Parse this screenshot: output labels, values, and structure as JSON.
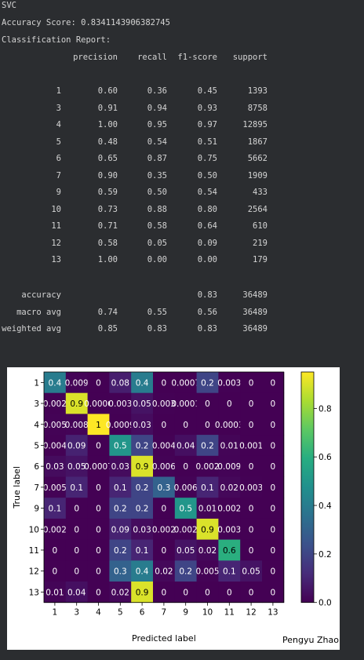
{
  "console": {
    "title": "SVC",
    "accuracy_line": "Accuracy Score: 0.8341143906382745",
    "report_title": "Classification Report:",
    "headers": [
      "precision",
      "recall",
      "f1-score",
      "support"
    ],
    "rows": [
      {
        "label": "1",
        "precision": "0.60",
        "recall": "0.36",
        "f1": "0.45",
        "support": "1393"
      },
      {
        "label": "3",
        "precision": "0.91",
        "recall": "0.94",
        "f1": "0.93",
        "support": "8758"
      },
      {
        "label": "4",
        "precision": "1.00",
        "recall": "0.95",
        "f1": "0.97",
        "support": "12895"
      },
      {
        "label": "5",
        "precision": "0.48",
        "recall": "0.54",
        "f1": "0.51",
        "support": "1867"
      },
      {
        "label": "6",
        "precision": "0.65",
        "recall": "0.87",
        "f1": "0.75",
        "support": "5662"
      },
      {
        "label": "7",
        "precision": "0.90",
        "recall": "0.35",
        "f1": "0.50",
        "support": "1909"
      },
      {
        "label": "9",
        "precision": "0.59",
        "recall": "0.50",
        "f1": "0.54",
        "support": "433"
      },
      {
        "label": "10",
        "precision": "0.73",
        "recall": "0.88",
        "f1": "0.80",
        "support": "2564"
      },
      {
        "label": "11",
        "precision": "0.71",
        "recall": "0.58",
        "f1": "0.64",
        "support": "610"
      },
      {
        "label": "12",
        "precision": "0.58",
        "recall": "0.05",
        "f1": "0.09",
        "support": "219"
      },
      {
        "label": "13",
        "precision": "1.00",
        "recall": "0.00",
        "f1": "0.00",
        "support": "179"
      }
    ],
    "summary": [
      {
        "label": "accuracy",
        "precision": "",
        "recall": "",
        "f1": "0.83",
        "support": "36489"
      },
      {
        "label": "macro avg",
        "precision": "0.74",
        "recall": "0.55",
        "f1": "0.56",
        "support": "36489"
      },
      {
        "label": "weighted avg",
        "precision": "0.85",
        "recall": "0.83",
        "f1": "0.83",
        "support": "36489"
      }
    ]
  },
  "chart_data": {
    "type": "heatmap",
    "xlabel": "Predicted label",
    "ylabel": "True label",
    "categories": [
      "1",
      "3",
      "4",
      "5",
      "6",
      "7",
      "9",
      "10",
      "11",
      "12",
      "13"
    ],
    "matrix": [
      [
        0.4,
        0.009,
        0,
        0.08,
        0.4,
        0,
        0.0007,
        0.2,
        0.003,
        0,
        0
      ],
      [
        0.002,
        0.9,
        0.0006,
        0.003,
        0.05,
        0.003,
        0.0001,
        0,
        0,
        0,
        0
      ],
      [
        0.005,
        0.008,
        1,
        0.0009,
        0.03,
        0,
        0,
        0,
        0.0003,
        0,
        0
      ],
      [
        0.004,
        0.09,
        0,
        0.5,
        0.2,
        0.004,
        0.04,
        0.2,
        0.01,
        0.001,
        0
      ],
      [
        0.03,
        0.05,
        0.0007,
        0.03,
        0.9,
        0.006,
        0,
        0.002,
        0.009,
        0,
        0
      ],
      [
        0.005,
        0.1,
        0,
        0.1,
        0.2,
        0.3,
        0.006,
        0.1,
        0.02,
        0.003,
        0
      ],
      [
        0.1,
        0,
        0,
        0.2,
        0.2,
        0,
        0.5,
        0.01,
        0.002,
        0,
        0
      ],
      [
        0.002,
        0,
        0,
        0.09,
        0.03,
        0.002,
        0.002,
        0.9,
        0.003,
        0,
        0
      ],
      [
        0,
        0,
        0,
        0.2,
        0.1,
        0,
        0.05,
        0.02,
        0.6,
        0,
        0
      ],
      [
        0,
        0,
        0,
        0.3,
        0.4,
        0.02,
        0.2,
        0.005,
        0.1,
        0.05,
        0
      ],
      [
        0.01,
        0.04,
        0,
        0.02,
        0.9,
        0,
        0,
        0,
        0,
        0,
        0
      ]
    ],
    "colorbar": {
      "ticks": [
        "0.0",
        "0.2",
        "0.4",
        "0.6",
        "0.8"
      ],
      "tick_values": [
        0,
        0.2,
        0.4,
        0.6,
        0.8
      ],
      "range": [
        0,
        0.95
      ]
    },
    "colormap": "viridis",
    "annotation": "Pengyu  Zhao"
  }
}
